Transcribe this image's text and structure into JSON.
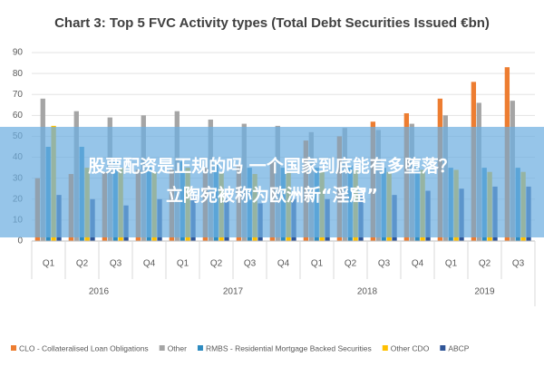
{
  "chart_data": {
    "type": "bar",
    "title": "Chart 3: Top 5 FVC Activity types (Total Debt Securities Issued €bn)",
    "categories": [
      "Q1",
      "Q2",
      "Q3",
      "Q4",
      "Q1",
      "Q2",
      "Q3",
      "Q4",
      "Q1",
      "Q2",
      "Q3",
      "Q4",
      "Q1",
      "Q2",
      "Q3"
    ],
    "x_groups": [
      "2016",
      "2017",
      "2018",
      "2019"
    ],
    "series": [
      {
        "name": "CLO - Collateralised Loan Obligations",
        "color": "#ed7d31",
        "values": [
          30,
          32,
          33,
          34,
          34,
          35,
          36,
          38,
          48,
          50,
          57,
          61,
          68,
          76,
          83
        ]
      },
      {
        "name": "Other",
        "color": "#a5a5a5",
        "values": [
          68,
          62,
          59,
          60,
          62,
          58,
          56,
          55,
          52,
          54,
          53,
          56,
          60,
          66,
          67
        ]
      },
      {
        "name": "RMBS - Residential Mortgage Backed Securities",
        "color": "#2e8bc0",
        "values": [
          45,
          45,
          38,
          36,
          38,
          37,
          35,
          35,
          35,
          36,
          35,
          38,
          35,
          35,
          35
        ]
      },
      {
        "name": "Other CDO",
        "color": "#ffc000",
        "values": [
          55,
          35,
          35,
          33,
          35,
          33,
          32,
          33,
          33,
          34,
          33,
          34,
          34,
          33,
          33
        ]
      },
      {
        "name": "ABCP",
        "color": "#2f5597",
        "values": [
          22,
          20,
          17,
          20,
          22,
          20,
          18,
          20,
          20,
          22,
          22,
          24,
          25,
          26,
          26
        ]
      }
    ],
    "ylim": [
      0,
      90
    ],
    "yticks": [
      0,
      10,
      20,
      30,
      40,
      50,
      60,
      70,
      80,
      90
    ],
    "grid": true
  },
  "banner": {
    "lines": [
      "股票配资是正规的吗 一个国家到底能有多堕落？",
      "立陶宛被称为欧洲新“淫窟”"
    ]
  }
}
